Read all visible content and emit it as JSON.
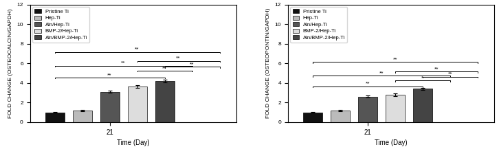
{
  "chart_data": [
    {
      "type": "bar",
      "xlabel": "Time (Day)",
      "ylabel": "FOLD CHANGE (OSTEOCALCIN/GAPDH)",
      "categories": [
        "21"
      ],
      "series": [
        {
          "name": "Pristine Ti",
          "color": "#111111",
          "values": [
            1.0
          ],
          "errors": [
            0.05
          ]
        },
        {
          "name": "Hep-Ti",
          "color": "#bbbbbb",
          "values": [
            1.2
          ],
          "errors": [
            0.07
          ]
        },
        {
          "name": "Aln/Hep-Ti",
          "color": "#555555",
          "values": [
            3.1
          ],
          "errors": [
            0.1
          ]
        },
        {
          "name": "BMP-2/Hep-Ti",
          "color": "#dddddd",
          "values": [
            3.65
          ],
          "errors": [
            0.14
          ]
        },
        {
          "name": "Aln/BMP-2/Hep-Ti",
          "color": "#444444",
          "values": [
            4.2
          ],
          "errors": [
            0.12
          ]
        }
      ],
      "ylim": [
        0,
        12
      ],
      "yticks": [
        0,
        2,
        4,
        6,
        8,
        10,
        12
      ],
      "legend": "upper left",
      "annotations": [
        {
          "text": "**",
          "x1": 0,
          "x2": 4,
          "y": 4.45
        },
        {
          "text": "**",
          "x1": 0,
          "x2": 5,
          "y": 5.65
        },
        {
          "text": "**",
          "x1": 0,
          "x2": 6,
          "y": 7.05
        },
        {
          "text": "**",
          "x1": 3,
          "x2": 5,
          "y": 5.15
        },
        {
          "text": "**",
          "x1": 3,
          "x2": 6,
          "y": 6.15
        },
        {
          "text": "**",
          "x1": 4,
          "x2": 6,
          "y": 5.55
        }
      ]
    },
    {
      "type": "bar",
      "xlabel": "Time (Day)",
      "ylabel": "FOLD CHANGE (OSTEOPONTIN/GAPDH)",
      "categories": [
        "21"
      ],
      "series": [
        {
          "name": "Pristine Ti",
          "color": "#111111",
          "values": [
            1.0
          ],
          "errors": [
            0.05
          ]
        },
        {
          "name": "Hep-Ti",
          "color": "#bbbbbb",
          "values": [
            1.2
          ],
          "errors": [
            0.07
          ]
        },
        {
          "name": "Aln/Hep-Ti",
          "color": "#555555",
          "values": [
            2.6
          ],
          "errors": [
            0.1
          ]
        },
        {
          "name": "BMP-2/Hep-Ti",
          "color": "#dddddd",
          "values": [
            2.8
          ],
          "errors": [
            0.12
          ]
        },
        {
          "name": "Aln/BMP-2/Hep-Ti",
          "color": "#444444",
          "values": [
            3.4
          ],
          "errors": [
            0.1
          ]
        }
      ],
      "ylim": [
        0,
        12
      ],
      "yticks": [
        0,
        2,
        4,
        6,
        8,
        10,
        12
      ],
      "legend": "upper left",
      "annotations": [
        {
          "text": "**",
          "x1": 0,
          "x2": 4,
          "y": 3.55
        },
        {
          "text": "**",
          "x1": 0,
          "x2": 5,
          "y": 4.65
        },
        {
          "text": "**",
          "x1": 0,
          "x2": 6,
          "y": 6.05
        },
        {
          "text": "*",
          "x1": 3,
          "x2": 5,
          "y": 4.15
        },
        {
          "text": "**",
          "x1": 3,
          "x2": 6,
          "y": 5.05
        },
        {
          "text": "**",
          "x1": 4,
          "x2": 6,
          "y": 4.55
        }
      ]
    }
  ]
}
